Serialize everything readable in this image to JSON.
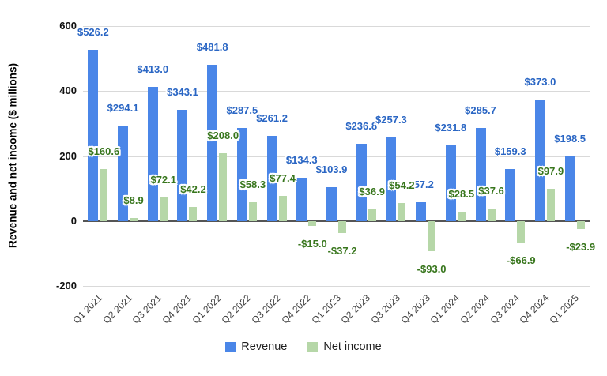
{
  "chart_data": {
    "type": "bar",
    "title": "",
    "xlabel": "",
    "ylabel": "Revenue and net income ($ millions)",
    "categories": [
      "Q1 2021",
      "Q2 2021",
      "Q3 2021",
      "Q4 2021",
      "Q1 2022",
      "Q2 2022",
      "Q3 2022",
      "Q4 2022",
      "Q1 2023",
      "Q2 2023",
      "Q3 2023",
      "Q4 2023",
      "Q1 2024",
      "Q2 2024",
      "Q3 2024",
      "Q4 2024",
      "Q1 2025"
    ],
    "series": [
      {
        "name": "Revenue",
        "values": [
          526.2,
          294.1,
          413.0,
          343.1,
          481.8,
          287.5,
          261.2,
          134.3,
          103.9,
          236.8,
          257.3,
          57.2,
          231.8,
          285.7,
          159.3,
          373.0,
          198.5
        ],
        "bar_color": "#4a86e8",
        "label_color": "#2a66c4"
      },
      {
        "name": "Net income",
        "values": [
          160.6,
          8.9,
          72.1,
          42.2,
          208.0,
          58.3,
          77.4,
          -15.0,
          -37.2,
          36.9,
          54.2,
          -93.0,
          28.5,
          37.6,
          -66.9,
          97.9,
          -23.9
        ],
        "bar_color": "#b6d7a8",
        "label_color": "#38761d"
      }
    ],
    "data_label_format": "$#.1",
    "y_axis": {
      "min": -200,
      "max": 600,
      "ticks": [
        600,
        400,
        200,
        0,
        -200
      ]
    },
    "grid": true,
    "legend_position": "bottom",
    "colors": {
      "gridline": "#d9d9d9",
      "zero_line": "#555555",
      "background": "#ffffff",
      "axis_text": "#111111",
      "x_label_text": "#404040"
    }
  }
}
